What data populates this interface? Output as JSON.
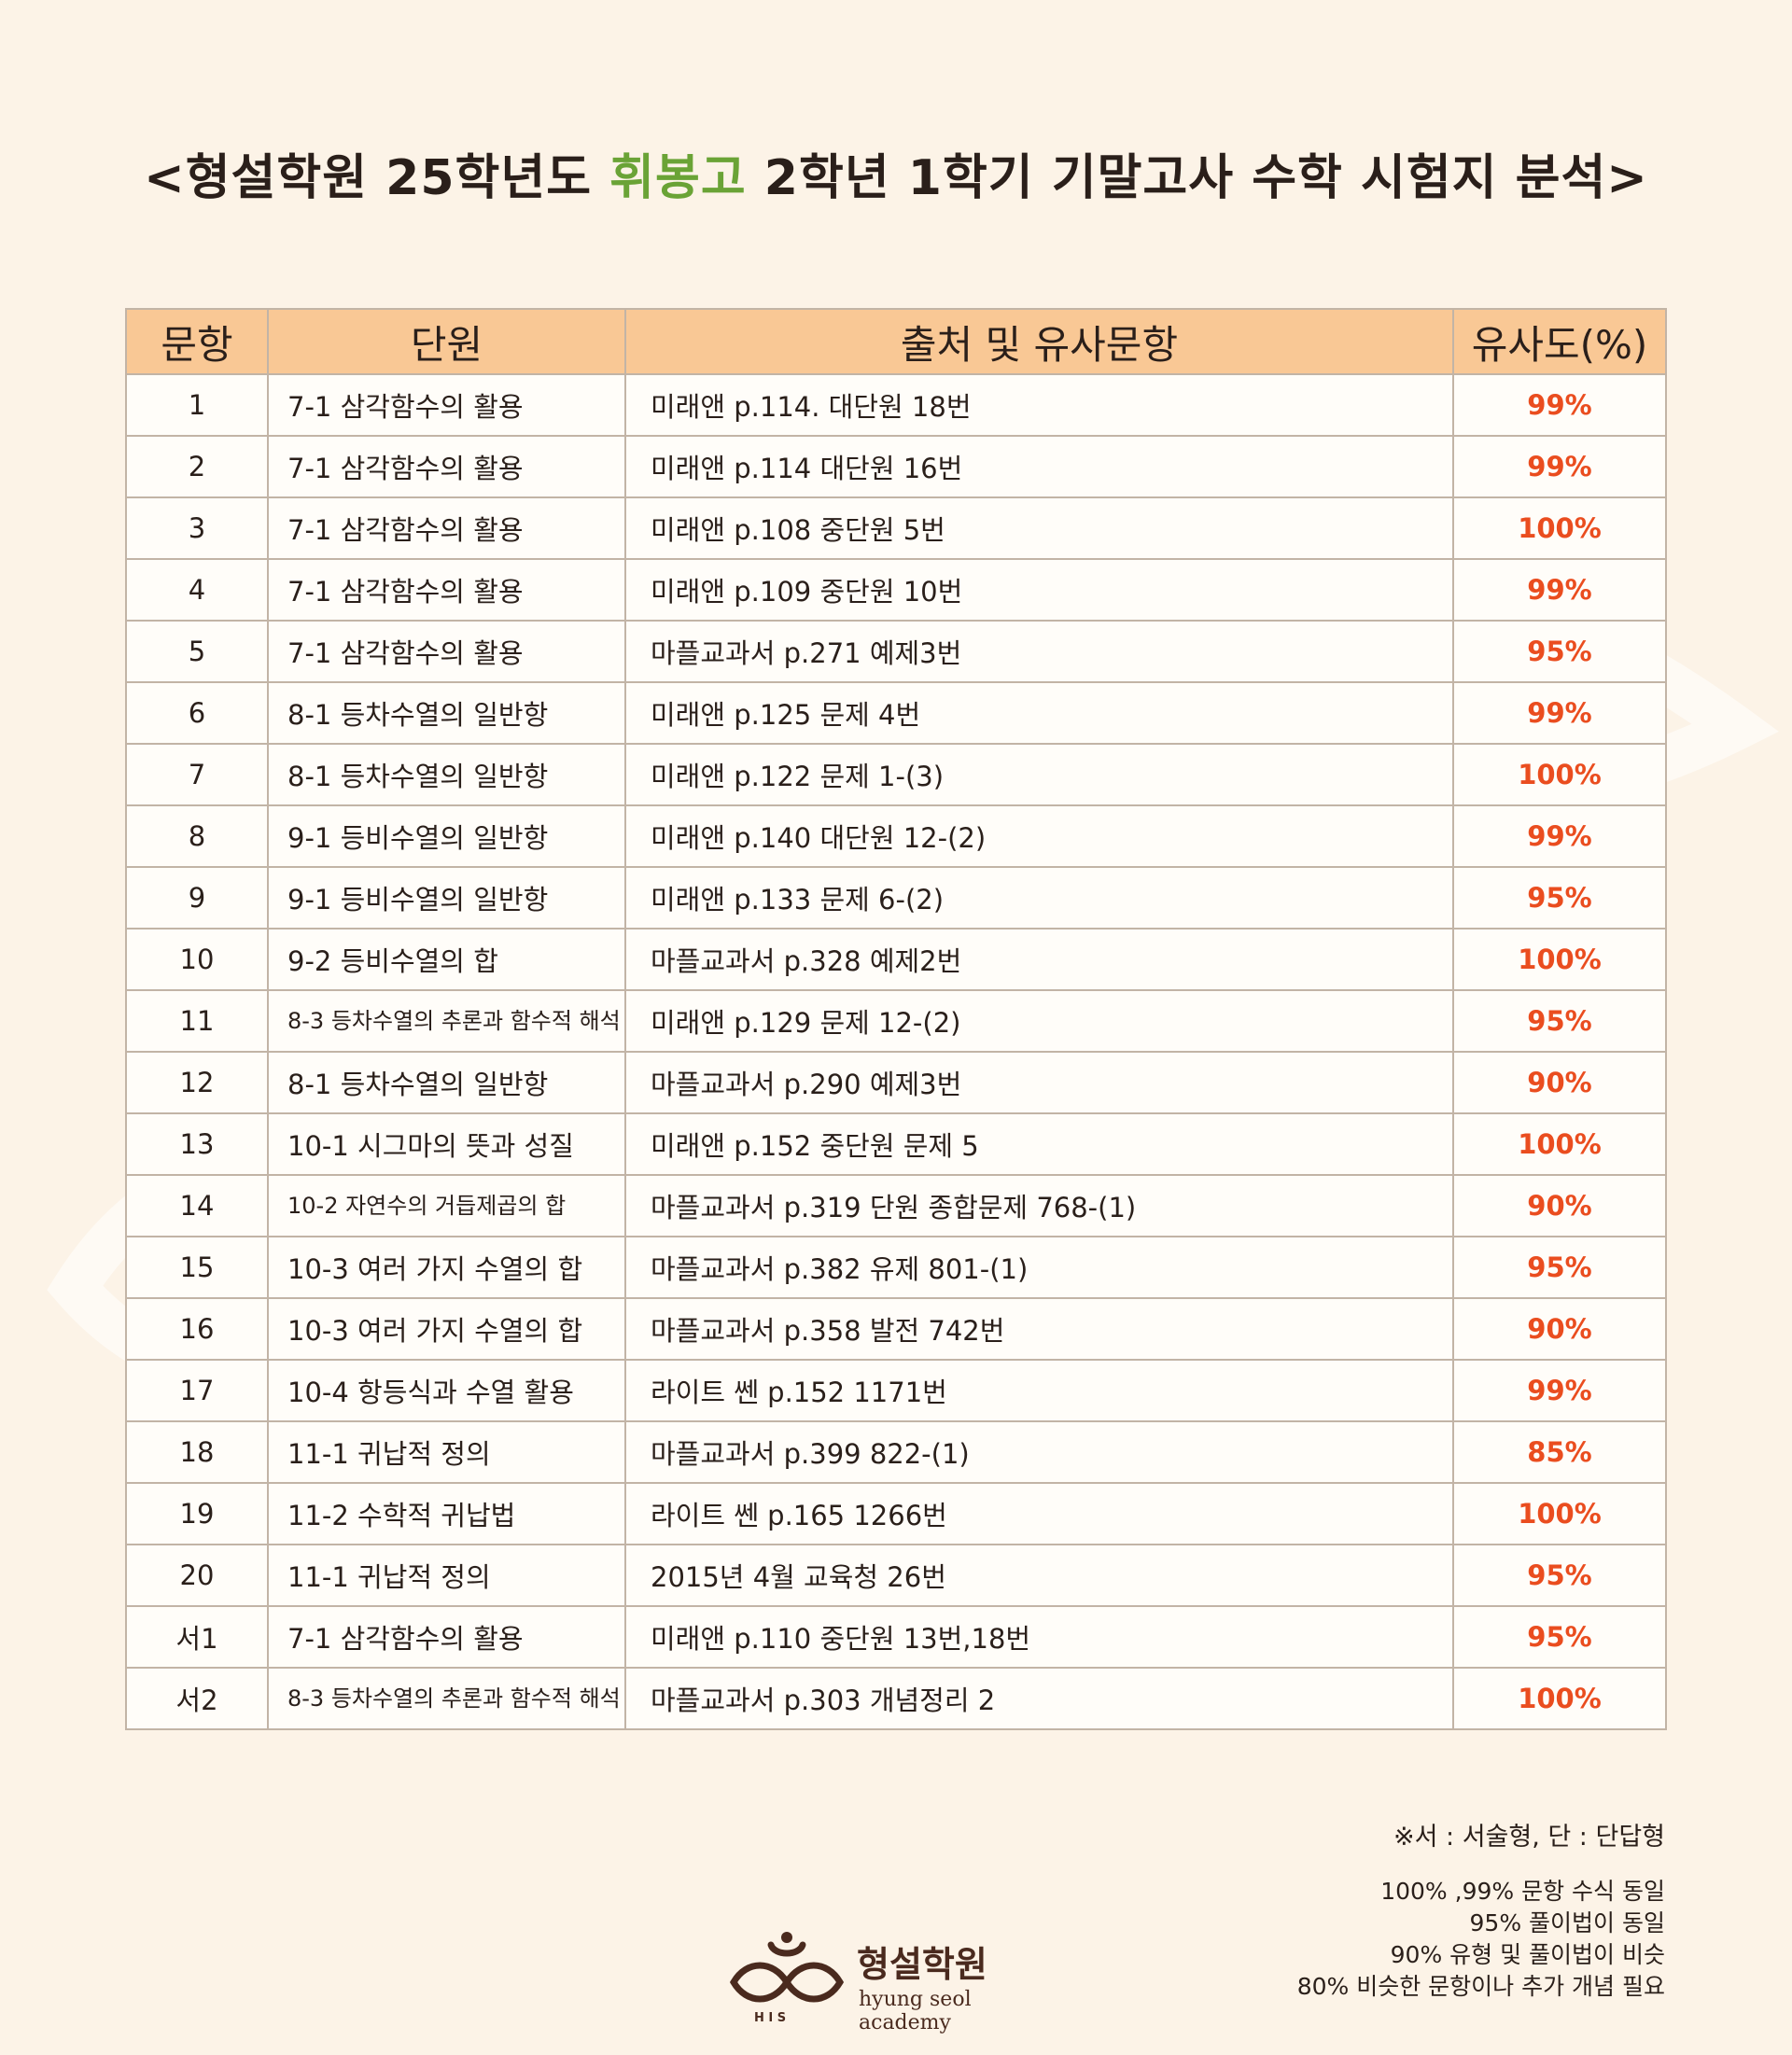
{
  "title": {
    "prefix": "<형설학원 25학년도 ",
    "highlight": "휘봉고",
    "suffix": " 2학년 1학기 기말고사 수학 시험지 분석>"
  },
  "colors": {
    "background": "#fcf3e7",
    "header_bg": "#f9c895",
    "highlight": "#6aa336",
    "similarity": "#ea4d1f"
  },
  "table": {
    "headers": [
      "문항",
      "단원",
      "출처 및 유사문항",
      "유사도(%)"
    ],
    "rows": [
      {
        "no": "1",
        "unit": "7-1 삼각함수의 활용",
        "source": "미래앤 p.114. 대단원 18번",
        "similarity": "99%"
      },
      {
        "no": "2",
        "unit": "7-1 삼각함수의 활용",
        "source": "미래앤 p.114 대단원 16번",
        "similarity": "99%"
      },
      {
        "no": "3",
        "unit": "7-1 삼각함수의 활용",
        "source": "미래앤 p.108 중단원 5번",
        "similarity": "100%"
      },
      {
        "no": "4",
        "unit": "7-1 삼각함수의 활용",
        "source": "미래앤 p.109 중단원 10번",
        "similarity": "99%"
      },
      {
        "no": "5",
        "unit": "7-1 삼각함수의 활용",
        "source": "마플교과서 p.271 예제3번",
        "similarity": "95%"
      },
      {
        "no": "6",
        "unit": "8-1 등차수열의 일반항",
        "source": "미래앤 p.125 문제 4번",
        "similarity": "99%"
      },
      {
        "no": "7",
        "unit": "8-1 등차수열의 일반항",
        "source": "미래앤 p.122 문제 1-(3)",
        "similarity": "100%"
      },
      {
        "no": "8",
        "unit": "9-1 등비수열의 일반항",
        "source": "미래앤 p.140 대단원 12-(2)",
        "similarity": "99%"
      },
      {
        "no": "9",
        "unit": "9-1 등비수열의 일반항",
        "source": "미래앤 p.133 문제 6-(2)",
        "similarity": "95%"
      },
      {
        "no": "10",
        "unit": "9-2 등비수열의 합",
        "source": "마플교과서 p.328 예제2번",
        "similarity": "100%"
      },
      {
        "no": "11",
        "unit": "8-3 등차수열의 추론과 함수적 해석",
        "source": "미래앤 p.129 문제 12-(2)",
        "similarity": "95%"
      },
      {
        "no": "12",
        "unit": "8-1 등차수열의 일반항",
        "source": "마플교과서 p.290 예제3번",
        "similarity": "90%"
      },
      {
        "no": "13",
        "unit": "10-1 시그마의 뜻과 성질",
        "source": "미래앤 p.152 중단원 문제 5",
        "similarity": "100%"
      },
      {
        "no": "14",
        "unit": "10-2 자연수의 거듭제곱의 합",
        "source": "마플교과서 p.319 단원 종합문제 768-(1)",
        "similarity": "90%"
      },
      {
        "no": "15",
        "unit": "10-3 여러 가지 수열의 합",
        "source": "마플교과서 p.382 유제 801-(1)",
        "similarity": "95%"
      },
      {
        "no": "16",
        "unit": "10-3 여러 가지 수열의 합",
        "source": "마플교과서 p.358 발전 742번",
        "similarity": "90%"
      },
      {
        "no": "17",
        "unit": "10-4 항등식과 수열 활용",
        "source": "라이트 쎈 p.152 1171번",
        "similarity": "99%"
      },
      {
        "no": "18",
        "unit": "11-1 귀납적 정의",
        "source": "마플교과서 p.399 822-(1)",
        "similarity": "85%"
      },
      {
        "no": "19",
        "unit": "11-2 수학적 귀납법",
        "source": "라이트 쎈 p.165 1266번",
        "similarity": "100%"
      },
      {
        "no": "20",
        "unit": "11-1 귀납적 정의",
        "source": "2015년 4월 교육청 26번",
        "similarity": "95%"
      },
      {
        "no": "서1",
        "unit": "7-1 삼각함수의 활용",
        "source": "미래앤 p.110 중단원 13번,18번",
        "similarity": "95%"
      },
      {
        "no": "서2",
        "unit": "8-3 등차수열의 추론과 함수적 해석",
        "source": "마플교과서 p.303 개념정리 2",
        "similarity": "100%"
      }
    ]
  },
  "legend": {
    "note": "※서 : 서술형, 단 : 단답형",
    "items": [
      "100% ,99% 문항 수식 동일",
      "95% 풀이법이 동일",
      "90% 유형 및 풀이법이 비슷",
      "80% 비슷한 문항이나 추가 개념 필요"
    ]
  },
  "logo": {
    "name": "형설학원",
    "subtitle": "hyung seol academy",
    "icon": "hsa-logo-icon"
  }
}
